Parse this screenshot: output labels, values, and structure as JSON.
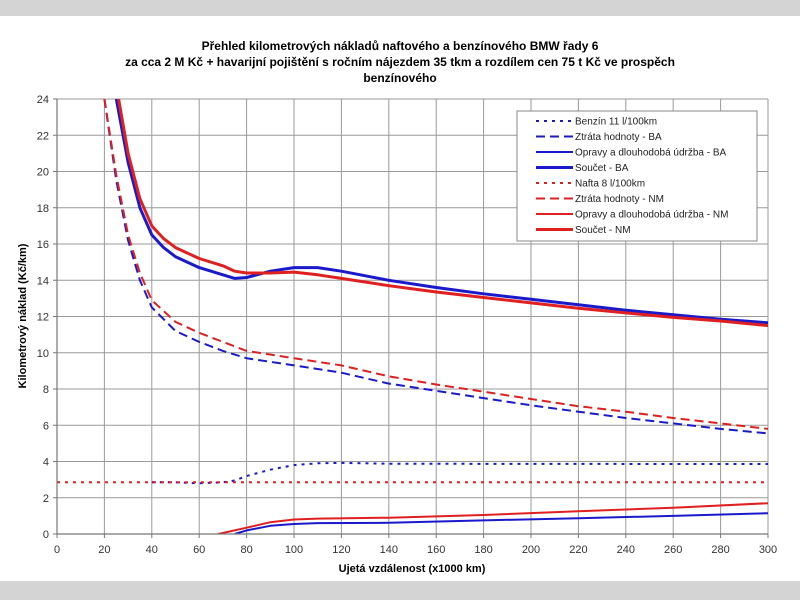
{
  "chart_data": {
    "type": "line",
    "title": [
      "Přehled kilometrových nákladů naftového a benzínového BMW řady 6",
      "za cca 2 M Kč + havarijní pojištění s ročním nájezdem 35 tkm a rozdílem cen 75 t Kč ve prospěch",
      "benzínového"
    ],
    "xlabel": "Ujetá vzdálenost (x1000 km)",
    "ylabel": "Kilometrový náklad (Kč/km)",
    "xlim": [
      0,
      300
    ],
    "ylim": [
      0,
      24
    ],
    "xticks": [
      0,
      20,
      40,
      60,
      80,
      100,
      120,
      140,
      160,
      180,
      200,
      220,
      240,
      260,
      280,
      300
    ],
    "yticks": [
      0,
      2,
      4,
      6,
      8,
      10,
      12,
      14,
      16,
      18,
      20,
      22,
      24
    ],
    "grid": true,
    "legend_position": "top-right",
    "series": [
      {
        "name": "Benzín 11 l/100km",
        "color": "#1a1acc",
        "style": "dotted",
        "width": "thin",
        "points": [
          [
            40,
            2.85
          ],
          [
            50,
            2.85
          ],
          [
            60,
            2.8
          ],
          [
            70,
            2.85
          ],
          [
            75,
            2.95
          ],
          [
            80,
            3.2
          ],
          [
            90,
            3.55
          ],
          [
            100,
            3.8
          ],
          [
            110,
            3.9
          ],
          [
            120,
            3.92
          ],
          [
            140,
            3.88
          ],
          [
            200,
            3.87
          ],
          [
            300,
            3.86
          ]
        ]
      },
      {
        "name": "Ztráta hodnoty - BA",
        "color": "#1a1acc",
        "style": "dashed",
        "width": "thin",
        "points": [
          [
            20,
            24
          ],
          [
            25,
            19.5
          ],
          [
            30,
            16.2
          ],
          [
            35,
            14
          ],
          [
            40,
            12.5
          ],
          [
            50,
            11.2
          ],
          [
            60,
            10.6
          ],
          [
            70,
            10.1
          ],
          [
            80,
            9.7
          ],
          [
            100,
            9.3
          ],
          [
            120,
            8.9
          ],
          [
            140,
            8.3
          ],
          [
            160,
            7.9
          ],
          [
            180,
            7.5
          ],
          [
            200,
            7.1
          ],
          [
            220,
            6.75
          ],
          [
            240,
            6.4
          ],
          [
            260,
            6.1
          ],
          [
            280,
            5.8
          ],
          [
            300,
            5.55
          ]
        ]
      },
      {
        "name": "Opravy a dlouhodobá údržba - BA",
        "color": "#1a1acc",
        "style": "solid",
        "width": "thin",
        "points": [
          [
            75,
            0
          ],
          [
            80,
            0.2
          ],
          [
            90,
            0.45
          ],
          [
            100,
            0.55
          ],
          [
            110,
            0.6
          ],
          [
            140,
            0.62
          ],
          [
            180,
            0.75
          ],
          [
            220,
            0.87
          ],
          [
            260,
            1.0
          ],
          [
            300,
            1.15
          ]
        ]
      },
      {
        "name": "Součet - BA",
        "color": "#1a1acc",
        "style": "solid",
        "width": "thick",
        "points": [
          [
            25,
            24
          ],
          [
            30,
            20.5
          ],
          [
            35,
            18
          ],
          [
            40,
            16.5
          ],
          [
            45,
            15.8
          ],
          [
            50,
            15.3
          ],
          [
            60,
            14.7
          ],
          [
            70,
            14.3
          ],
          [
            75,
            14.1
          ],
          [
            80,
            14.15
          ],
          [
            90,
            14.5
          ],
          [
            100,
            14.7
          ],
          [
            110,
            14.7
          ],
          [
            120,
            14.5
          ],
          [
            140,
            14.0
          ],
          [
            160,
            13.6
          ],
          [
            180,
            13.25
          ],
          [
            200,
            12.95
          ],
          [
            220,
            12.65
          ],
          [
            240,
            12.35
          ],
          [
            260,
            12.1
          ],
          [
            280,
            11.85
          ],
          [
            300,
            11.65
          ]
        ]
      },
      {
        "name": "Nafta 8 l/100km",
        "color": "#e02020",
        "style": "dotted",
        "width": "thin",
        "points": [
          [
            0,
            2.85
          ],
          [
            300,
            2.85
          ]
        ]
      },
      {
        "name": "Ztráta hodnoty - NM",
        "color": "#e02020",
        "style": "dashed",
        "width": "thin",
        "points": [
          [
            20,
            24
          ],
          [
            25,
            19.8
          ],
          [
            30,
            16.5
          ],
          [
            35,
            14.4
          ],
          [
            40,
            12.9
          ],
          [
            50,
            11.7
          ],
          [
            60,
            11.1
          ],
          [
            70,
            10.6
          ],
          [
            80,
            10.1
          ],
          [
            100,
            9.7
          ],
          [
            120,
            9.3
          ],
          [
            140,
            8.7
          ],
          [
            160,
            8.25
          ],
          [
            180,
            7.85
          ],
          [
            200,
            7.45
          ],
          [
            220,
            7.05
          ],
          [
            240,
            6.75
          ],
          [
            260,
            6.4
          ],
          [
            280,
            6.1
          ],
          [
            300,
            5.8
          ]
        ]
      },
      {
        "name": "Opravy a dlouhodobá údržba - NM",
        "color": "#e02020",
        "style": "solid",
        "width": "thin",
        "points": [
          [
            68,
            0
          ],
          [
            80,
            0.35
          ],
          [
            90,
            0.65
          ],
          [
            100,
            0.8
          ],
          [
            110,
            0.85
          ],
          [
            140,
            0.9
          ],
          [
            180,
            1.05
          ],
          [
            220,
            1.25
          ],
          [
            260,
            1.45
          ],
          [
            300,
            1.7
          ]
        ]
      },
      {
        "name": "Součet - NM",
        "color": "#e02020",
        "style": "solid",
        "width": "thick",
        "points": [
          [
            26,
            24
          ],
          [
            30,
            21
          ],
          [
            35,
            18.5
          ],
          [
            40,
            17
          ],
          [
            45,
            16.3
          ],
          [
            50,
            15.8
          ],
          [
            60,
            15.2
          ],
          [
            70,
            14.8
          ],
          [
            75,
            14.5
          ],
          [
            80,
            14.4
          ],
          [
            90,
            14.4
          ],
          [
            100,
            14.45
          ],
          [
            110,
            14.3
          ],
          [
            120,
            14.1
          ],
          [
            140,
            13.7
          ],
          [
            160,
            13.35
          ],
          [
            180,
            13.05
          ],
          [
            200,
            12.75
          ],
          [
            220,
            12.45
          ],
          [
            240,
            12.2
          ],
          [
            260,
            11.95
          ],
          [
            280,
            11.75
          ],
          [
            300,
            11.5
          ]
        ]
      }
    ]
  }
}
